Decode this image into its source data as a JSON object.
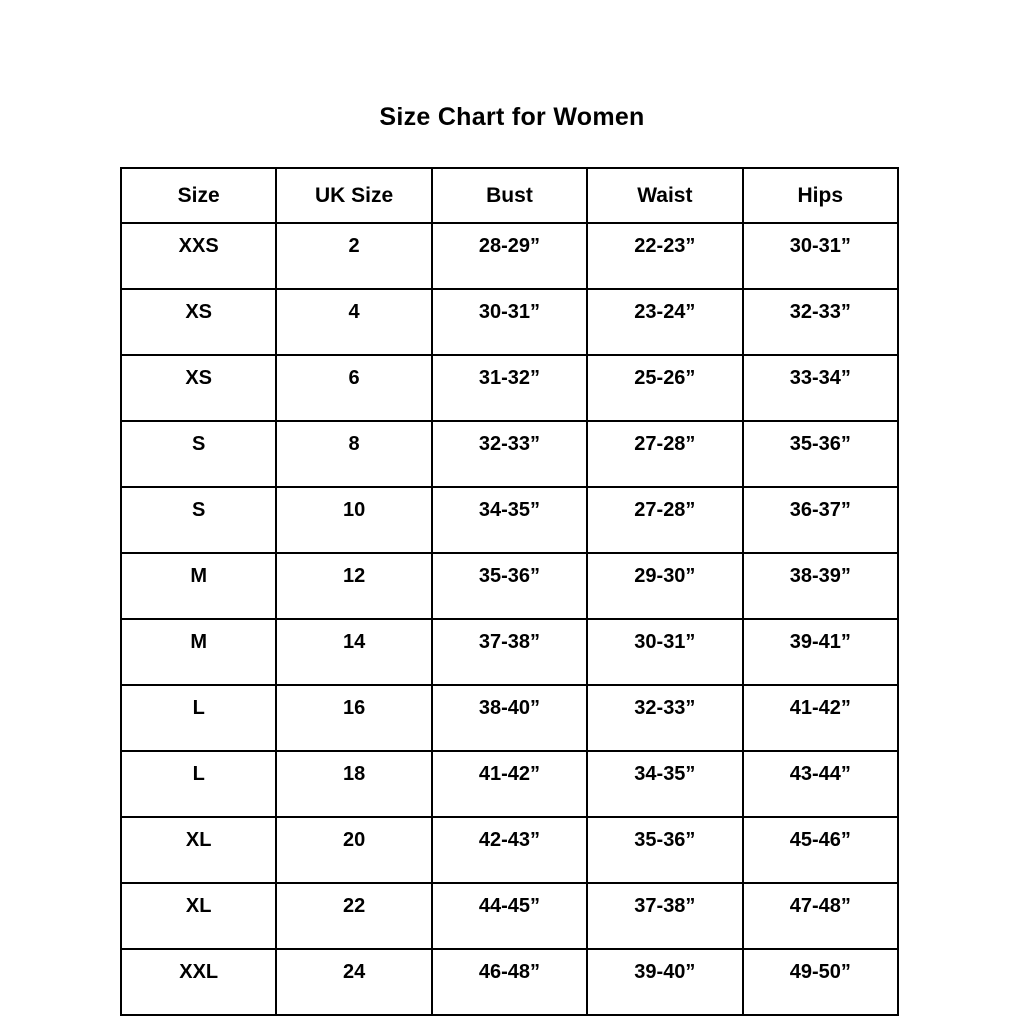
{
  "title": "Size Chart for Women",
  "colors": {
    "text": "#000000",
    "border": "#000000",
    "background": "#ffffff"
  },
  "chart_data": {
    "type": "table",
    "title": "Size Chart for Women",
    "columns": [
      "Size",
      "UK Size",
      "Bust",
      "Waist",
      "Hips"
    ],
    "rows": [
      [
        "XXS",
        "2",
        "28-29”",
        "22-23”",
        "30-31”"
      ],
      [
        "XS",
        "4",
        "30-31”",
        "23-24”",
        "32-33”"
      ],
      [
        "XS",
        "6",
        "31-32”",
        "25-26”",
        "33-34”"
      ],
      [
        "S",
        "8",
        "32-33”",
        "27-28”",
        "35-36”"
      ],
      [
        "S",
        "10",
        "34-35”",
        "27-28”",
        "36-37”"
      ],
      [
        "M",
        "12",
        "35-36”",
        "29-30”",
        "38-39”"
      ],
      [
        "M",
        "14",
        "37-38”",
        "30-31”",
        "39-41”"
      ],
      [
        "L",
        "16",
        "38-40”",
        "32-33”",
        "41-42”"
      ],
      [
        "L",
        "18",
        "41-42”",
        "34-35”",
        "43-44”"
      ],
      [
        "XL",
        "20",
        "42-43”",
        "35-36”",
        "45-46”"
      ],
      [
        "XL",
        "22",
        "44-45”",
        "37-38”",
        "47-48”"
      ],
      [
        "XXL",
        "24",
        "46-48”",
        "39-40”",
        "49-50”"
      ]
    ]
  }
}
